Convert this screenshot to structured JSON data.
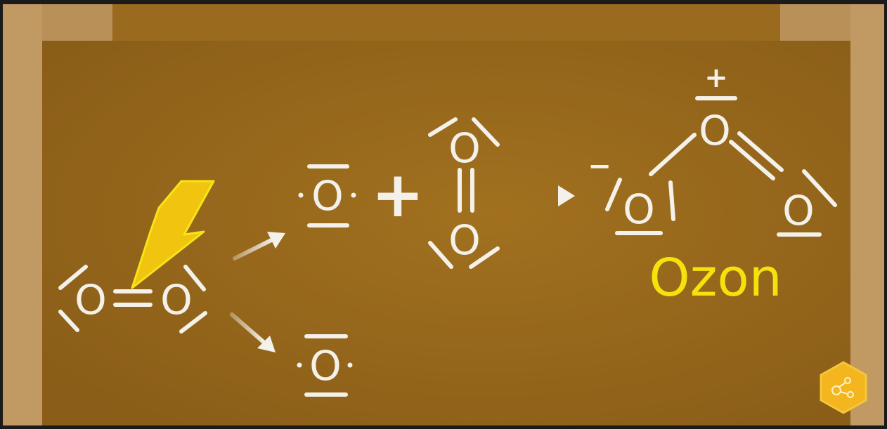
{
  "atoms": {
    "symbol": "O"
  },
  "charges": {
    "plus": "+",
    "minus": "−"
  },
  "operators": {
    "plus": "+"
  },
  "labels": {
    "product_name": "Ozon"
  },
  "icons": {
    "lightning": "lightning-bolt-icon",
    "logo": "hexagon-molecule-logo-icon"
  },
  "colors": {
    "board": "#9a6a1e",
    "frame": "#b89058",
    "ink": "#f4f1ea",
    "highlight": "#f5e20c",
    "bolt_fill": "#f1c40f",
    "bolt_stroke": "#f7e417",
    "logo": "#f3b61f"
  }
}
